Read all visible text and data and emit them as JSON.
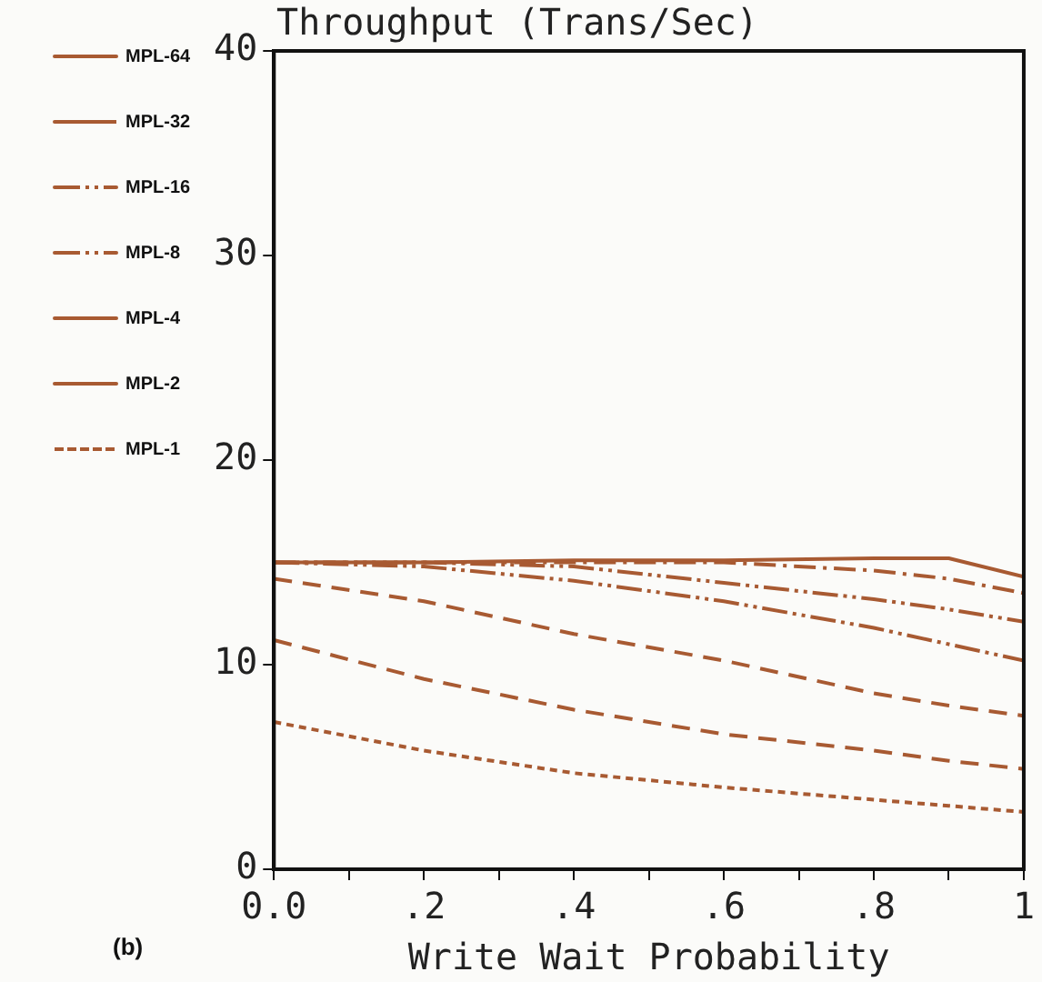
{
  "chart_data": {
    "type": "line",
    "title": "Throughput (Trans/Sec)",
    "xlabel": "Write Wait Probability",
    "x": [
      0,
      0.2,
      0.4,
      0.6,
      0.8,
      0.9,
      1
    ],
    "series": [
      {
        "name": "MPL-64",
        "color": "#a85a32",
        "line_style": "solid",
        "values": [
          15,
          15,
          15.1,
          15.1,
          15.2,
          15.2,
          14.3
        ]
      },
      {
        "name": "MPL-32",
        "color": "#a85a32",
        "line_style": "dashdot",
        "values": [
          15,
          15,
          15,
          15,
          14.6,
          14.2,
          13.5
        ]
      },
      {
        "name": "MPL-16",
        "color": "#a85a32",
        "line_style": "dashdotdot",
        "values": [
          15,
          15,
          14.8,
          14,
          13.2,
          12.7,
          12.1
        ]
      },
      {
        "name": "MPL-8",
        "color": "#a85a32",
        "line_style": "dashdotdot",
        "values": [
          15,
          14.8,
          14.1,
          13.1,
          11.8,
          11,
          10.2
        ]
      },
      {
        "name": "MPL-4",
        "color": "#a85a32",
        "line_style": "dashed",
        "values": [
          14.2,
          13.1,
          11.5,
          10.2,
          8.6,
          8,
          7.5
        ]
      },
      {
        "name": "MPL-2",
        "color": "#a85a32",
        "line_style": "dashed",
        "values": [
          11.2,
          9.3,
          7.8,
          6.6,
          5.8,
          5.3,
          4.9
        ]
      },
      {
        "name": "MPL-1",
        "color": "#a85a32",
        "line_style": "dotted",
        "values": [
          7.2,
          5.8,
          4.7,
          4,
          3.4,
          3.1,
          2.8
        ]
      }
    ],
    "xlim": [
      0,
      1
    ],
    "xticks": [
      {
        "value": 0,
        "label": "0.0"
      },
      {
        "value": 0.1,
        "label": null
      },
      {
        "value": 0.2,
        "label": ".2"
      },
      {
        "value": 0.3,
        "label": null
      },
      {
        "value": 0.4,
        "label": ".4"
      },
      {
        "value": 0.5,
        "label": null
      },
      {
        "value": 0.6,
        "label": ".6"
      },
      {
        "value": 0.7,
        "label": null
      },
      {
        "value": 0.8,
        "label": ".8"
      },
      {
        "value": 0.9,
        "label": null
      },
      {
        "value": 1,
        "label": "1"
      }
    ],
    "ylim": [
      0,
      40
    ],
    "yticks": [
      0,
      10,
      20,
      30,
      40
    ],
    "grid": false,
    "legend": "left",
    "marker": "none",
    "annotations": [
      "(b)"
    ]
  }
}
